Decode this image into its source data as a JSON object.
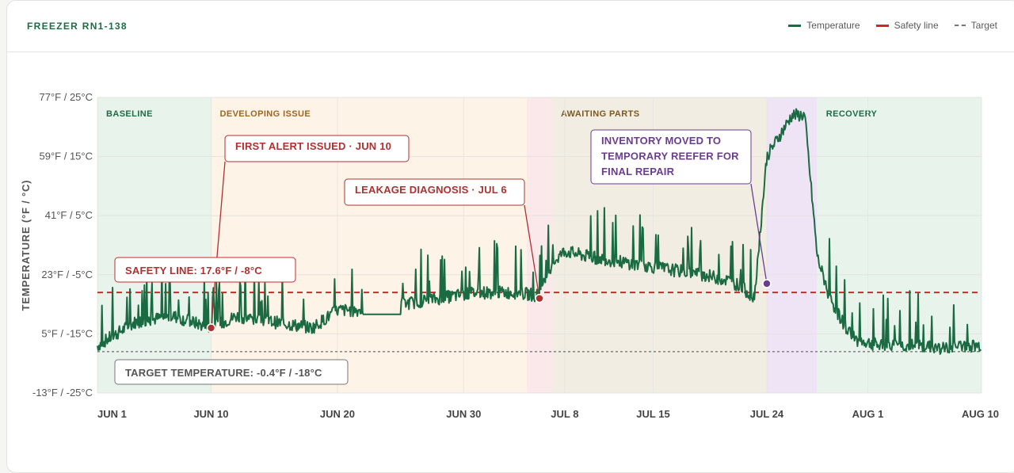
{
  "header": {
    "title": "FREEZER RN1-138"
  },
  "legend": {
    "temperature": "Temperature",
    "safety": "Safety line",
    "target": "Target"
  },
  "colors": {
    "temperature": "#1a6a42",
    "safety": "#c92a2a",
    "target": "#777777",
    "diagnosis": "#b03030",
    "inventory": "#6a3d8f"
  },
  "chart_data": {
    "type": "line",
    "title": "",
    "ylabel": "TEMPERATURE (°F / °C)",
    "ylim_c": [
      -25,
      25
    ],
    "y_ticks": [
      "77°F / 25°C",
      "59°F / 15°C",
      "41°F / 5°C",
      "23°F / -5°C",
      "5°F / -15°C",
      "-13°F / -25°C"
    ],
    "x_ticks": [
      "JUN 1",
      "JUN 10",
      "JUN 20",
      "JUN 30",
      "JUL 8",
      "JUL 15",
      "JUL 24",
      "AUG 1",
      "AUG 10"
    ],
    "x_range_days": [
      "2024-06-01",
      "2024-08-10"
    ],
    "phases": [
      {
        "label": "BASELINE",
        "start": "2024-06-01",
        "end": "2024-06-10",
        "color": "#e8f3ec",
        "text_color": "#1f6b45"
      },
      {
        "label": "DEVELOPING ISSUE",
        "start": "2024-06-10",
        "end": "2024-07-05",
        "color": "#fdf3e6",
        "text_color": "#a0661e"
      },
      {
        "label": "",
        "start": "2024-07-05",
        "end": "2024-07-07",
        "color": "#fbe8ea",
        "text_color": "#b03030"
      },
      {
        "label": "AWAITING PARTS",
        "start": "2024-07-07",
        "end": "2024-07-24",
        "color": "#f2ede3",
        "text_color": "#7a5a1e"
      },
      {
        "label": "",
        "start": "2024-07-24",
        "end": "2024-07-28",
        "color": "#efe4f6",
        "text_color": "#6a3d8f"
      },
      {
        "label": "RECOVERY",
        "start": "2024-07-28",
        "end": "2024-08-10",
        "color": "#e8f3ec",
        "text_color": "#1f6b45"
      }
    ],
    "safety_line": {
      "value_f": 17.6,
      "value_c": -8,
      "label": "SAFETY LINE: 17.6°F / -8°C"
    },
    "target_line": {
      "value_f": -0.4,
      "value_c": -18,
      "label": "TARGET TEMPERATURE: -0.4°F / -18°C"
    },
    "annotations": [
      {
        "label": "FIRST ALERT ISSUED · JUN 10",
        "date": "2024-06-10",
        "value_c": -14,
        "color": "#b03030"
      },
      {
        "label": "LEAKAGE DIAGNOSIS · JUL 6",
        "date": "2024-07-06",
        "value_c": -9,
        "color": "#b03030"
      },
      {
        "label": "INVENTORY MOVED TO\nTEMPORARY REEFER FOR\nFINAL REPAIR",
        "date": "2024-07-24",
        "value_c": -6.5,
        "color": "#6a3d8f"
      }
    ],
    "series": [
      {
        "name": "Temperature",
        "profile_days": [
          0,
          3,
          6,
          9,
          11,
          14,
          17,
          19,
          22,
          24,
          27,
          30,
          33,
          35,
          36,
          37,
          39,
          42,
          45,
          48,
          50,
          51,
          52,
          53,
          55,
          56,
          57,
          58,
          59,
          60,
          62,
          65,
          67,
          69
        ],
        "profile_c": [
          -17,
          -13,
          -12,
          -14,
          -12,
          -13,
          -14,
          -11,
          -11,
          -10,
          -9,
          -8,
          -8,
          -8.5,
          -3,
          -1,
          -2,
          -3,
          -4,
          -5,
          -6,
          -7,
          -9,
          15,
          22,
          22,
          -2,
          -9,
          -13,
          -16,
          -17,
          -17,
          -17.5,
          -17
        ]
      }
    ]
  }
}
